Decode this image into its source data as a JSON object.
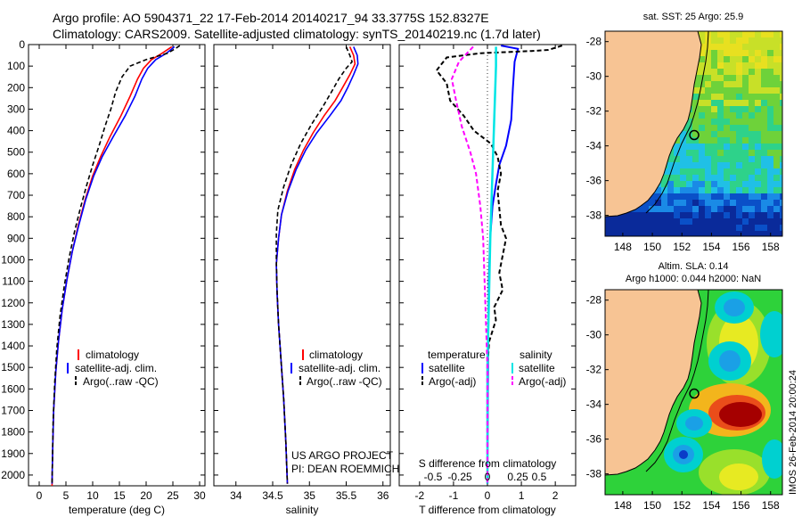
{
  "header": {
    "line1": "Argo profile: AO 5904371_22 17-Feb-2014 20140217_94 33.3775S 152.8327E",
    "line2": "Climatology: CARS2009. Satellite-adjusted climatology: synTS_20140219.nc (1.7d later)"
  },
  "colors": {
    "climatology": "#ff0000",
    "satellite": "#0000ff",
    "argo": "#000000",
    "sal_satellite": "#00e5e5",
    "sal_argo": "#ff00ff",
    "land": "#f7c494"
  },
  "chart_data": [
    {
      "type": "line",
      "xlabel": "temperature (deg C)",
      "ylabel": "",
      "xlim": [
        -2,
        31
      ],
      "ylim": [
        2050,
        0
      ],
      "xticks": [
        0,
        5,
        10,
        15,
        20,
        25,
        30
      ],
      "yticks": [
        0,
        100,
        200,
        300,
        400,
        500,
        600,
        700,
        800,
        900,
        1000,
        1100,
        1200,
        1300,
        1400,
        1500,
        1600,
        1700,
        1800,
        1900,
        2000
      ],
      "legend": [
        "climatology",
        "satellite-adj. clim.",
        "Argo(..raw -QC)"
      ],
      "legend_position": "lower-right",
      "series": [
        {
          "name": "climatology",
          "points": [
            [
              24.8,
              10
            ],
            [
              23,
              40
            ],
            [
              21,
              70
            ],
            [
              19.5,
              110
            ],
            [
              18.4,
              160
            ],
            [
              17,
              240
            ],
            [
              15.3,
              330
            ],
            [
              13.2,
              430
            ],
            [
              11.5,
              520
            ],
            [
              10,
              610
            ],
            [
              8.6,
              720
            ],
            [
              7.3,
              840
            ],
            [
              6.2,
              960
            ],
            [
              5.2,
              1090
            ],
            [
              4.3,
              1230
            ],
            [
              3.6,
              1380
            ],
            [
              3.1,
              1520
            ],
            [
              2.7,
              1700
            ],
            [
              2.5,
              1900
            ],
            [
              2.4,
              2050
            ]
          ]
        },
        {
          "name": "satellite-adj. clim.",
          "points": [
            [
              25.3,
              10
            ],
            [
              23.8,
              40
            ],
            [
              21.8,
              70
            ],
            [
              20.3,
              110
            ],
            [
              19.2,
              160
            ],
            [
              17.9,
              240
            ],
            [
              16.1,
              330
            ],
            [
              13.8,
              430
            ],
            [
              11.8,
              520
            ],
            [
              10.2,
              610
            ],
            [
              8.7,
              720
            ],
            [
              7.4,
              840
            ],
            [
              6.2,
              960
            ],
            [
              5.2,
              1090
            ],
            [
              4.3,
              1230
            ],
            [
              3.6,
              1380
            ],
            [
              3.1,
              1520
            ],
            [
              2.7,
              1700
            ],
            [
              2.5,
              1900
            ],
            [
              2.4,
              2040
            ]
          ]
        },
        {
          "name": "Argo(..raw -QC)",
          "points": [
            [
              26.3,
              5
            ],
            [
              25.4,
              20
            ],
            [
              24,
              40
            ],
            [
              20,
              70
            ],
            [
              17,
              100
            ],
            [
              15.5,
              150
            ],
            [
              14.3,
              220
            ],
            [
              13.4,
              300
            ],
            [
              12.3,
              380
            ],
            [
              11.2,
              470
            ],
            [
              10,
              560
            ],
            [
              8.8,
              660
            ],
            [
              7.7,
              760
            ],
            [
              6.6,
              870
            ],
            [
              5.6,
              990
            ],
            [
              4.7,
              1120
            ],
            [
              3.9,
              1260
            ],
            [
              3.3,
              1410
            ],
            [
              2.9,
              1570
            ],
            [
              2.6,
              1750
            ],
            [
              2.5,
              1900
            ],
            [
              2.4,
              2040
            ]
          ]
        }
      ]
    },
    {
      "type": "line",
      "xlabel": "salinity",
      "xlim": [
        33.7,
        36.1
      ],
      "ylim": [
        2050,
        0
      ],
      "xticks": [
        34,
        34.5,
        35,
        35.5,
        36
      ],
      "legend": [
        "climatology",
        "satellite-adj. clim.",
        "Argo(..raw -QC)"
      ],
      "legend_position": "lower-right",
      "annotation": [
        "US ARGO PROJECT",
        "PI: DEAN ROEMMICH"
      ],
      "series": [
        {
          "name": "climatology",
          "points": [
            [
              35.55,
              10
            ],
            [
              35.6,
              50
            ],
            [
              35.62,
              90
            ],
            [
              35.55,
              140
            ],
            [
              35.45,
              200
            ],
            [
              35.35,
              260
            ],
            [
              35.2,
              330
            ],
            [
              35.05,
              410
            ],
            [
              34.92,
              490
            ],
            [
              34.8,
              580
            ],
            [
              34.7,
              680
            ],
            [
              34.62,
              790
            ],
            [
              34.58,
              900
            ],
            [
              34.55,
              1020
            ],
            [
              34.56,
              1150
            ],
            [
              34.58,
              1300
            ],
            [
              34.61,
              1450
            ],
            [
              34.65,
              1650
            ],
            [
              34.68,
              1850
            ],
            [
              34.7,
              2040
            ]
          ]
        },
        {
          "name": "satellite-adj. clim.",
          "points": [
            [
              35.6,
              10
            ],
            [
              35.65,
              50
            ],
            [
              35.66,
              90
            ],
            [
              35.6,
              140
            ],
            [
              35.52,
              200
            ],
            [
              35.43,
              260
            ],
            [
              35.28,
              330
            ],
            [
              35.1,
              410
            ],
            [
              34.95,
              490
            ],
            [
              34.82,
              580
            ],
            [
              34.71,
              680
            ],
            [
              34.62,
              790
            ],
            [
              34.58,
              900
            ],
            [
              34.55,
              1020
            ],
            [
              34.56,
              1150
            ],
            [
              34.58,
              1300
            ],
            [
              34.61,
              1450
            ],
            [
              34.65,
              1650
            ],
            [
              34.68,
              1850
            ],
            [
              34.7,
              2040
            ]
          ]
        },
        {
          "name": "Argo(..raw -QC)",
          "points": [
            [
              35.5,
              10
            ],
            [
              35.55,
              50
            ],
            [
              35.58,
              80
            ],
            [
              35.5,
              110
            ],
            [
              35.4,
              160
            ],
            [
              35.3,
              220
            ],
            [
              35.18,
              290
            ],
            [
              35.03,
              370
            ],
            [
              34.88,
              460
            ],
            [
              34.75,
              560
            ],
            [
              34.65,
              660
            ],
            [
              34.57,
              770
            ],
            [
              34.55,
              880
            ],
            [
              34.55,
              1000
            ],
            [
              34.56,
              1140
            ],
            [
              34.58,
              1300
            ],
            [
              34.61,
              1450
            ],
            [
              34.65,
              1650
            ],
            [
              34.68,
              1850
            ],
            [
              34.7,
              2040
            ]
          ]
        }
      ]
    },
    {
      "type": "line",
      "xlabel": "T difference from climatology",
      "xlabel_top": "S difference from climatology",
      "xlim": [
        -2.6,
        2.6
      ],
      "ylim": [
        2050,
        0
      ],
      "xticks": [
        -2,
        -1,
        0,
        1,
        2
      ],
      "xticks_s": [
        "-0.5",
        "-0.25",
        "0",
        "0.25",
        "0.5"
      ],
      "legend_temperature": {
        "title": "temperature",
        "items": [
          "satellite",
          "Argo(-adj)"
        ]
      },
      "legend_salinity": {
        "title": "salinity",
        "items": [
          "satellite",
          "Argo(-adj)"
        ]
      },
      "series": [
        {
          "name": "satellite",
          "points": [
            [
              0.4,
              5
            ],
            [
              0.9,
              20
            ],
            [
              0.8,
              80
            ],
            [
              0.75,
              200
            ],
            [
              0.7,
              350
            ],
            [
              0.55,
              470
            ],
            [
              0.35,
              560
            ],
            [
              0.25,
              650
            ],
            [
              0.15,
              750
            ],
            [
              0.08,
              900
            ],
            [
              0.04,
              1100
            ],
            [
              0.02,
              1400
            ],
            [
              0.01,
              1700
            ],
            [
              0.0,
              2040
            ]
          ]
        },
        {
          "name": "Argo(-adj)",
          "points": [
            [
              2.2,
              5
            ],
            [
              1.8,
              25
            ],
            [
              1.3,
              30
            ],
            [
              -0.2,
              40
            ],
            [
              -1.2,
              60
            ],
            [
              -1.5,
              120
            ],
            [
              -1.2,
              180
            ],
            [
              -1.1,
              260
            ],
            [
              -0.7,
              330
            ],
            [
              -0.4,
              400
            ],
            [
              0.1,
              460
            ],
            [
              0.3,
              520
            ],
            [
              0.4,
              600
            ],
            [
              0.3,
              680
            ],
            [
              0.35,
              760
            ],
            [
              0.4,
              840
            ],
            [
              0.55,
              900
            ],
            [
              0.45,
              980
            ],
            [
              0.35,
              1060
            ],
            [
              0.45,
              1140
            ],
            [
              0.2,
              1220
            ],
            [
              0.25,
              1280
            ],
            [
              0.05,
              1380
            ],
            [
              0.0,
              1500
            ],
            [
              0.0,
              2040
            ]
          ]
        },
        {
          "name": "salinity satellite",
          "points": [
            [
              0.06,
              10
            ],
            [
              0.06,
              100
            ],
            [
              0.05,
              300
            ],
            [
              0.04,
              500
            ],
            [
              0.03,
              700
            ],
            [
              0.02,
              900
            ],
            [
              0.01,
              1200
            ],
            [
              0.0,
              1500
            ],
            [
              0.0,
              2040
            ]
          ]
        },
        {
          "name": "salinity Argo(-adj)",
          "points": [
            [
              -0.1,
              10
            ],
            [
              -0.2,
              80
            ],
            [
              -0.25,
              160
            ],
            [
              -0.22,
              260
            ],
            [
              -0.18,
              380
            ],
            [
              -0.12,
              500
            ],
            [
              -0.08,
              600
            ],
            [
              -0.05,
              750
            ],
            [
              -0.03,
              900
            ],
            [
              -0.02,
              1100
            ],
            [
              -0.01,
              1300
            ],
            [
              0.0,
              1500
            ],
            [
              0.0,
              2040
            ]
          ]
        }
      ]
    },
    {
      "type": "heatmap",
      "title": "sat. SST: 25 Argo: 25.9",
      "xticks": [
        148,
        150,
        152,
        154,
        156,
        158
      ],
      "yticks": [
        -28,
        -30,
        -32,
        -34,
        -36,
        -38
      ],
      "xlim": [
        146.8,
        158.8
      ],
      "ylim": [
        -39.2,
        -27.4
      ],
      "marker": {
        "lon": 152.8327,
        "lat": -33.3775
      }
    },
    {
      "type": "heatmap",
      "title": "Altim. SLA: 0.14",
      "subtitle": "Argo h1000: 0.044 h2000: NaN",
      "xticks": [
        148,
        150,
        152,
        154,
        156,
        158
      ],
      "yticks": [
        -28,
        -30,
        -32,
        -34,
        -36,
        -38
      ],
      "xlim": [
        146.8,
        158.8
      ],
      "ylim": [
        -39.2,
        -27.4
      ],
      "marker": {
        "lon": 152.8327,
        "lat": -33.3775
      }
    }
  ],
  "side_note": "IMOS 26-Feb-2014 20:00:24"
}
